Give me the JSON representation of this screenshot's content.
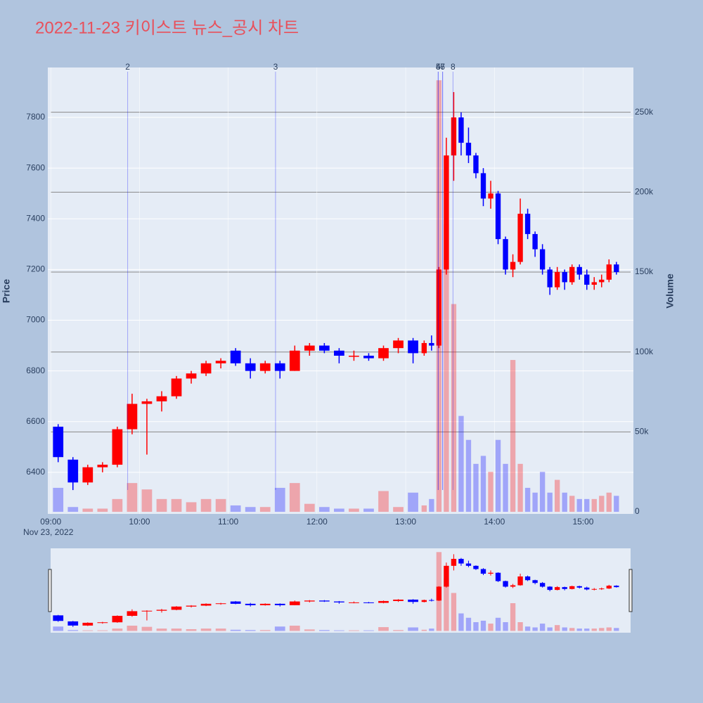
{
  "chart_data": {
    "type": "candlestick",
    "title": "2022-11-23 키이스트 뉴스_공시 차트",
    "ylabel": "Price",
    "y2label": "Volume",
    "x_date_label": "Nov 23, 2022",
    "up_color": "#ff0000",
    "down_color": "#0000ff",
    "xlim": [
      "08:58",
      "15:34"
    ],
    "xticks": [
      "09:00",
      "10:00",
      "11:00",
      "12:00",
      "13:00",
      "14:00",
      "15:00"
    ],
    "ylim": [
      6236,
      7997
    ],
    "yticks": [
      6400,
      6600,
      6800,
      7000,
      7200,
      7400,
      7600,
      7800
    ],
    "y2lim": [
      -1300,
      278000
    ],
    "y2ticks": [
      0,
      {
        "value": 50000,
        "label": "50k"
      },
      {
        "value": 100000,
        "label": "100k"
      },
      {
        "value": 150000,
        "label": "150k"
      },
      {
        "value": 200000,
        "label": "200k"
      },
      {
        "value": 250000,
        "label": "250k"
      }
    ],
    "grid": true,
    "annotations": [
      {
        "x": "09:52",
        "text": "2"
      },
      {
        "x": "11:32",
        "text": "3"
      },
      {
        "x": "13:22",
        "text": "4"
      },
      {
        "x": "13:22",
        "text": "5"
      },
      {
        "x": "13:25",
        "text": "6"
      },
      {
        "x": "13:25",
        "text": "7"
      },
      {
        "x": "13:32",
        "text": "8"
      }
    ],
    "x": [
      "09:00",
      "09:10",
      "09:20",
      "09:30",
      "09:40",
      "09:50",
      "10:00",
      "10:10",
      "10:20",
      "10:30",
      "10:40",
      "10:50",
      "11:00",
      "11:10",
      "11:20",
      "11:30",
      "11:40",
      "11:50",
      "12:00",
      "12:10",
      "12:20",
      "12:30",
      "12:40",
      "12:50",
      "13:00",
      "13:10",
      "13:15",
      "13:20",
      "13:25",
      "13:30",
      "13:35",
      "13:40",
      "13:45",
      "13:50",
      "13:55",
      "14:00",
      "14:05",
      "14:10",
      "14:15",
      "14:20",
      "14:25",
      "14:30",
      "14:35",
      "14:40",
      "14:45",
      "14:50",
      "14:55",
      "15:00",
      "15:05",
      "15:10",
      "15:15",
      "15:20"
    ],
    "open": [
      6580,
      6450,
      6360,
      6420,
      6430,
      6570,
      6670,
      6680,
      6700,
      6770,
      6790,
      6830,
      6880,
      6830,
      6800,
      6830,
      6800,
      6880,
      6900,
      6880,
      6860,
      6860,
      6850,
      6890,
      6920,
      6870,
      6910,
      6900,
      7200,
      7650,
      7800,
      7700,
      7650,
      7580,
      7480,
      7500,
      7320,
      7200,
      7230,
      7420,
      7340,
      7280,
      7200,
      7130,
      7190,
      7150,
      7210,
      7180,
      7140,
      7150,
      7160,
      7220
    ],
    "high": [
      6590,
      6460,
      6430,
      6440,
      6580,
      6710,
      6690,
      6720,
      6780,
      6800,
      6840,
      6850,
      6890,
      6850,
      6840,
      6840,
      6900,
      6910,
      6910,
      6890,
      6880,
      6870,
      6900,
      6930,
      6930,
      6920,
      6940,
      7210,
      7720,
      7900,
      7820,
      7760,
      7660,
      7600,
      7550,
      7510,
      7330,
      7260,
      7480,
      7440,
      7350,
      7300,
      7210,
      7210,
      7200,
      7220,
      7220,
      7200,
      7170,
      7180,
      7240,
      7230
    ],
    "low": [
      6440,
      6330,
      6350,
      6400,
      6420,
      6550,
      6470,
      6640,
      6690,
      6750,
      6780,
      6810,
      6820,
      6770,
      6790,
      6770,
      6800,
      6860,
      6870,
      6830,
      6840,
      6840,
      6840,
      6870,
      6830,
      6860,
      6880,
      6890,
      7180,
      7550,
      7650,
      7620,
      7560,
      7450,
      7440,
      7300,
      7180,
      7170,
      7220,
      7320,
      7250,
      7180,
      7100,
      7120,
      7120,
      7140,
      7160,
      7120,
      7120,
      7130,
      7150,
      7180
    ],
    "close": [
      6460,
      6360,
      6420,
      6430,
      6570,
      6670,
      6680,
      6700,
      6770,
      6790,
      6830,
      6840,
      6830,
      6800,
      6830,
      6800,
      6880,
      6900,
      6880,
      6860,
      6860,
      6850,
      6890,
      6920,
      6870,
      6910,
      6900,
      7200,
      7650,
      7800,
      7700,
      7650,
      7580,
      7480,
      7500,
      7320,
      7200,
      7230,
      7420,
      7340,
      7280,
      7200,
      7130,
      7190,
      7150,
      7210,
      7180,
      7140,
      7150,
      7160,
      7220,
      7190
    ],
    "volume": [
      15000,
      3000,
      2000,
      2000,
      8000,
      18000,
      14000,
      8000,
      8000,
      6000,
      8000,
      8000,
      4000,
      3000,
      3000,
      15000,
      18000,
      5000,
      3000,
      2000,
      2000,
      2000,
      13000,
      3000,
      12000,
      4000,
      8000,
      270000,
      180000,
      130000,
      60000,
      45000,
      30000,
      35000,
      25000,
      45000,
      30000,
      95000,
      30000,
      15000,
      12000,
      25000,
      12000,
      20000,
      12000,
      10000,
      8000,
      8000,
      8000,
      10000,
      12000,
      10000
    ]
  }
}
